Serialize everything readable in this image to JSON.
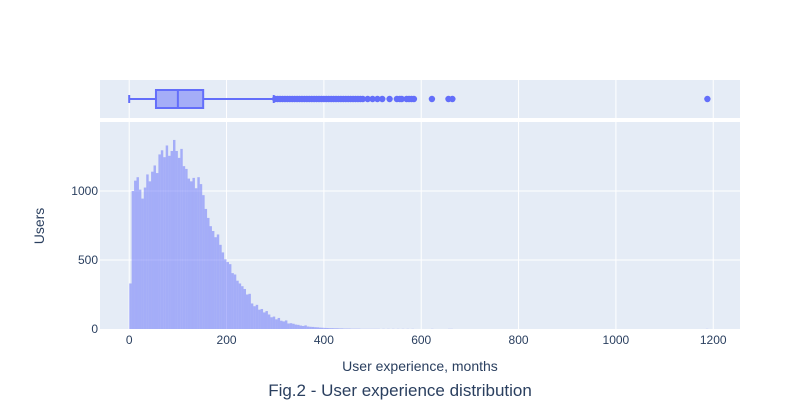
{
  "chart_data": [
    {
      "type": "box",
      "panel": "marginal",
      "orientation": "horizontal",
      "color": "#636efa",
      "min": 0,
      "q1": 55,
      "median": 100,
      "q3": 152,
      "upper_fence": 297,
      "outliers": [
        300,
        305,
        310,
        315,
        320,
        325,
        330,
        335,
        340,
        345,
        350,
        355,
        360,
        365,
        370,
        375,
        380,
        385,
        390,
        395,
        400,
        405,
        410,
        415,
        420,
        425,
        430,
        435,
        440,
        445,
        450,
        455,
        460,
        465,
        470,
        475,
        480,
        490,
        500,
        510,
        520,
        535,
        550,
        556,
        560,
        570,
        575,
        580,
        585,
        622,
        656,
        664,
        1188
      ],
      "xlim": [
        -60,
        1255
      ]
    },
    {
      "type": "bar",
      "subtype": "histogram",
      "panel": "main",
      "color": "#636efa",
      "bin_width": 5,
      "bins": [
        [
          0,
          330
        ],
        [
          5,
          1000
        ],
        [
          10,
          1075
        ],
        [
          15,
          1100
        ],
        [
          20,
          1010
        ],
        [
          25,
          945
        ],
        [
          30,
          1025
        ],
        [
          35,
          1120
        ],
        [
          40,
          1070
        ],
        [
          45,
          1140
        ],
        [
          50,
          1185
        ],
        [
          55,
          1130
        ],
        [
          60,
          1265
        ],
        [
          65,
          1295
        ],
        [
          70,
          1245
        ],
        [
          75,
          1330
        ],
        [
          80,
          1255
        ],
        [
          85,
          1290
        ],
        [
          90,
          1370
        ],
        [
          95,
          1290
        ],
        [
          100,
          1240
        ],
        [
          105,
          1305
        ],
        [
          110,
          1180
        ],
        [
          115,
          1160
        ],
        [
          120,
          1090
        ],
        [
          125,
          1070
        ],
        [
          130,
          1095
        ],
        [
          135,
          1020
        ],
        [
          140,
          1100
        ],
        [
          145,
          1050
        ],
        [
          150,
          970
        ],
        [
          155,
          870
        ],
        [
          160,
          805
        ],
        [
          165,
          745
        ],
        [
          170,
          710
        ],
        [
          175,
          665
        ],
        [
          180,
          685
        ],
        [
          185,
          610
        ],
        [
          190,
          555
        ],
        [
          195,
          505
        ],
        [
          200,
          485
        ],
        [
          205,
          470
        ],
        [
          210,
          405
        ],
        [
          215,
          395
        ],
        [
          220,
          350
        ],
        [
          225,
          330
        ],
        [
          230,
          310
        ],
        [
          235,
          290
        ],
        [
          240,
          250
        ],
        [
          245,
          255
        ],
        [
          250,
          185
        ],
        [
          255,
          165
        ],
        [
          260,
          175
        ],
        [
          265,
          140
        ],
        [
          270,
          145
        ],
        [
          275,
          120
        ],
        [
          280,
          130
        ],
        [
          285,
          105
        ],
        [
          290,
          85
        ],
        [
          295,
          90
        ],
        [
          300,
          70
        ],
        [
          305,
          80
        ],
        [
          310,
          60
        ],
        [
          315,
          55
        ],
        [
          320,
          62
        ],
        [
          325,
          40
        ],
        [
          330,
          42
        ],
        [
          335,
          38
        ],
        [
          340,
          32
        ],
        [
          345,
          30
        ],
        [
          350,
          25
        ],
        [
          355,
          22
        ],
        [
          360,
          26
        ],
        [
          365,
          18
        ],
        [
          370,
          16
        ],
        [
          375,
          15
        ],
        [
          380,
          13
        ],
        [
          385,
          12
        ],
        [
          390,
          10
        ],
        [
          395,
          9
        ],
        [
          400,
          8
        ],
        [
          405,
          7
        ],
        [
          410,
          6
        ],
        [
          415,
          6
        ],
        [
          420,
          5
        ],
        [
          425,
          5
        ],
        [
          430,
          4
        ],
        [
          435,
          4
        ],
        [
          440,
          3
        ],
        [
          445,
          3
        ],
        [
          450,
          3
        ],
        [
          455,
          2
        ],
        [
          460,
          2
        ],
        [
          465,
          2
        ],
        [
          470,
          2
        ],
        [
          475,
          1
        ],
        [
          480,
          1
        ],
        [
          485,
          1
        ],
        [
          490,
          1
        ],
        [
          495,
          1
        ],
        [
          500,
          1
        ],
        [
          505,
          1
        ],
        [
          510,
          1
        ],
        [
          520,
          1
        ],
        [
          530,
          1
        ],
        [
          540,
          1
        ],
        [
          550,
          1
        ],
        [
          560,
          1
        ],
        [
          570,
          1
        ],
        [
          580,
          1
        ],
        [
          620,
          1
        ],
        [
          655,
          1
        ],
        [
          660,
          1
        ],
        [
          1185,
          1
        ]
      ],
      "xlim": [
        -60,
        1255
      ],
      "ylim": [
        0,
        1500
      ],
      "xticks": [
        0,
        200,
        400,
        600,
        800,
        1000,
        1200
      ],
      "yticks": [
        0,
        500,
        1000
      ],
      "xlabel": "User experience, months",
      "ylabel": "Users",
      "title": "Fig.2 - User experience distribution",
      "grid": true,
      "plot_bgcolor": "#e5ecf6",
      "grid_color": "#ffffff",
      "text_color": "#2a3f5f"
    }
  ]
}
